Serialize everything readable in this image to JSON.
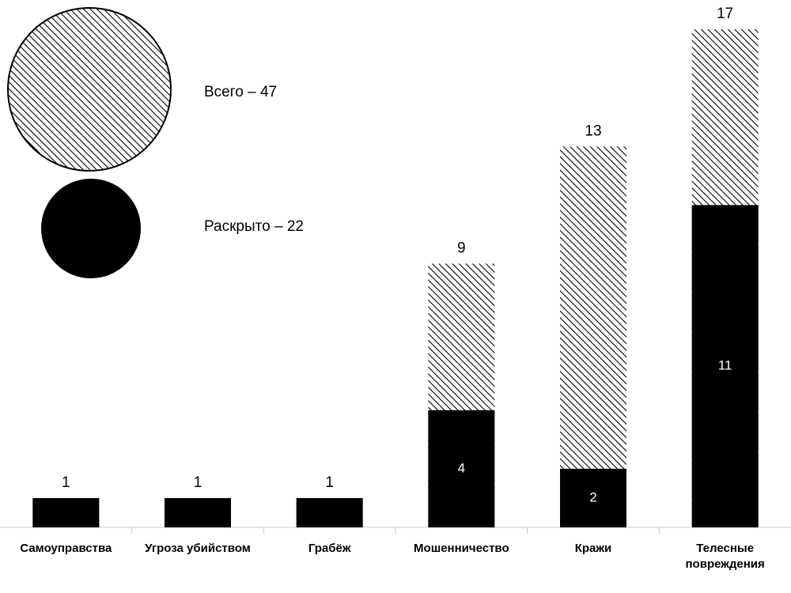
{
  "chart_data": {
    "type": "bar",
    "overlap": true,
    "categories": [
      "Самоуправства",
      "Угроза убийством",
      "Грабёж",
      "Мошенничество",
      "Кражи",
      "Телесные повреждения"
    ],
    "series": [
      {
        "name": "Всего – 47",
        "color": "#000000",
        "pattern": "hatch",
        "values": [
          1,
          1,
          1,
          9,
          13,
          17
        ]
      },
      {
        "name": "Раскрыто – 22",
        "color": "#000000",
        "pattern": "solid",
        "values": [
          1,
          1,
          1,
          4,
          2,
          11
        ]
      }
    ],
    "ylim": [
      0,
      17
    ]
  }
}
